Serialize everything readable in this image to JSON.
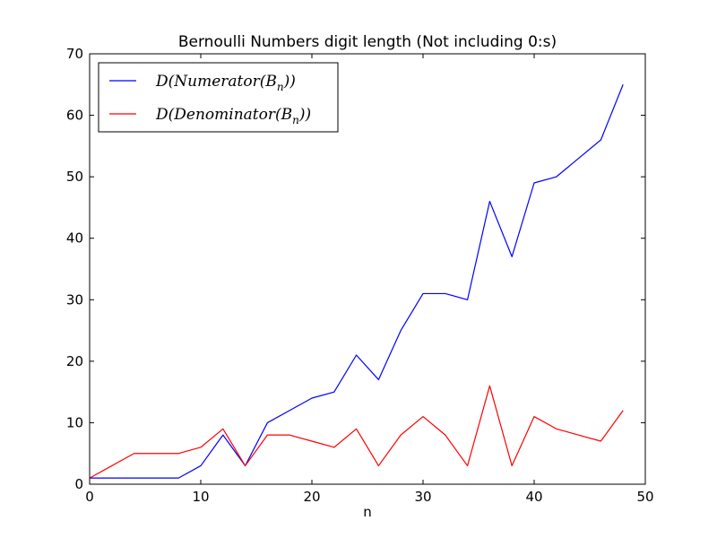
{
  "chart_data": {
    "type": "line",
    "title": "Bernoulli Numbers digit length (Not including 0:s)",
    "xlabel": "n",
    "ylabel": "",
    "xlim": [
      0,
      50
    ],
    "ylim": [
      0,
      70
    ],
    "x_ticks": [
      0,
      10,
      20,
      30,
      40,
      50
    ],
    "y_ticks": [
      0,
      10,
      20,
      30,
      40,
      50,
      60,
      70
    ],
    "grid": false,
    "legend_position": "top-left",
    "x": [
      0,
      2,
      4,
      6,
      8,
      10,
      12,
      14,
      16,
      18,
      20,
      22,
      24,
      26,
      28,
      30,
      32,
      34,
      36,
      38,
      40,
      42,
      44,
      46,
      48
    ],
    "series": [
      {
        "name": "D(Numerator(B_n))",
        "legend_main": "D(Numerator(B",
        "legend_sub": "n",
        "legend_tail": "))",
        "color": "#0000ff",
        "values": [
          1,
          1,
          1,
          1,
          1,
          3,
          8,
          3,
          10,
          12,
          14,
          15,
          21,
          17,
          25,
          31,
          31,
          30,
          46,
          37,
          49,
          50,
          53,
          56,
          65
        ]
      },
      {
        "name": "D(Denominator(B_n))",
        "legend_main": "D(Denominator(B",
        "legend_sub": "n",
        "legend_tail": "))",
        "color": "#ff0000",
        "values": [
          1,
          3,
          5,
          5,
          5,
          6,
          9,
          3,
          8,
          8,
          7,
          6,
          9,
          3,
          8,
          11,
          8,
          3,
          16,
          3,
          11,
          9,
          8,
          7,
          12
        ]
      }
    ]
  }
}
